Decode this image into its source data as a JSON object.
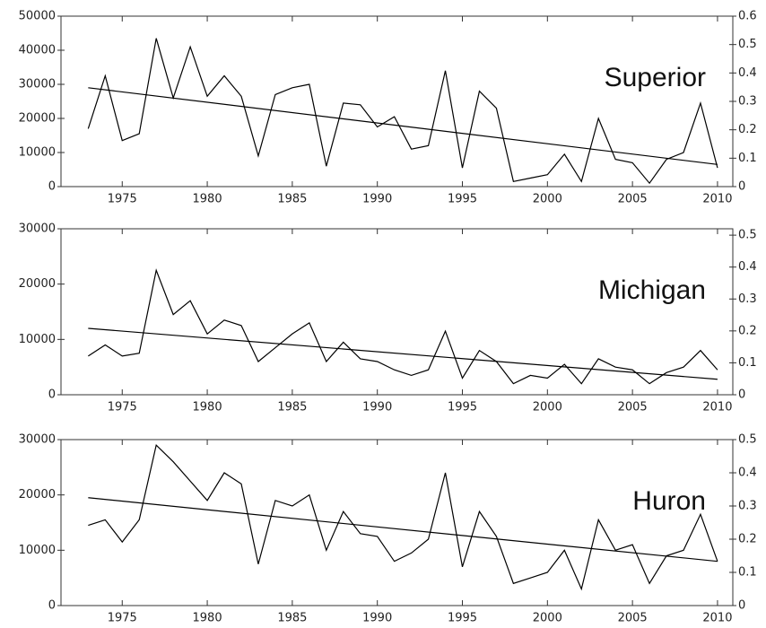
{
  "chart_data": [
    {
      "type": "line",
      "title": "Superior",
      "x": [
        1973,
        1974,
        1975,
        1976,
        1977,
        1978,
        1979,
        1980,
        1981,
        1982,
        1983,
        1984,
        1985,
        1986,
        1987,
        1988,
        1989,
        1990,
        1991,
        1992,
        1993,
        1994,
        1995,
        1996,
        1997,
        1998,
        1999,
        2000,
        2001,
        2002,
        2003,
        2004,
        2005,
        2006,
        2007,
        2008,
        2009,
        2010
      ],
      "series": [
        {
          "color": "#000000",
          "values": [
            17000,
            32500,
            13500,
            15500,
            43500,
            26000,
            41000,
            26500,
            32500,
            26500,
            9000,
            27000,
            29000,
            30000,
            6000,
            24500,
            24000,
            17500,
            20500,
            11000,
            12000,
            34000,
            5500,
            28000,
            23000,
            1500,
            2500,
            3500,
            9500,
            1500,
            20000,
            8000,
            7000,
            1000,
            8000,
            10000,
            24500,
            5500
          ]
        },
        {
          "color": "#000000",
          "x": [
            1973,
            2010
          ],
          "values": [
            29000,
            6500
          ]
        }
      ],
      "xlim": [
        1971.4,
        2010.9
      ],
      "xticks": [
        1975,
        1980,
        1985,
        1990,
        1995,
        2000,
        2005,
        2010
      ],
      "ylim": [
        0,
        50000
      ],
      "yticks": [
        0,
        10000,
        20000,
        30000,
        40000,
        50000
      ],
      "y2lim": [
        0,
        0.6
      ],
      "y2ticks": [
        0,
        0.1,
        0.2,
        0.3,
        0.4,
        0.5,
        0.6
      ]
    },
    {
      "type": "line",
      "title": "Michigan",
      "x": [
        1973,
        1974,
        1975,
        1976,
        1977,
        1978,
        1979,
        1980,
        1981,
        1982,
        1983,
        1984,
        1985,
        1986,
        1987,
        1988,
        1989,
        1990,
        1991,
        1992,
        1993,
        1994,
        1995,
        1996,
        1997,
        1998,
        1999,
        2000,
        2001,
        2002,
        2003,
        2004,
        2005,
        2006,
        2007,
        2008,
        2009,
        2010
      ],
      "series": [
        {
          "color": "#000000",
          "values": [
            7000,
            9000,
            7000,
            7500,
            22500,
            14500,
            17000,
            11000,
            13500,
            12500,
            6000,
            8500,
            11000,
            13000,
            6000,
            9500,
            6500,
            6000,
            4500,
            3500,
            4500,
            11500,
            3000,
            8000,
            6000,
            2000,
            3500,
            3000,
            5500,
            2000,
            6500,
            5000,
            4500,
            2000,
            4000,
            5000,
            8000,
            4500
          ]
        },
        {
          "color": "#000000",
          "x": [
            1973,
            2010
          ],
          "values": [
            12000,
            2800
          ]
        }
      ],
      "xlim": [
        1971.4,
        2010.9
      ],
      "xticks": [
        1975,
        1980,
        1985,
        1990,
        1995,
        2000,
        2005,
        2010
      ],
      "ylim": [
        0,
        30000
      ],
      "yticks": [
        0,
        10000,
        20000,
        30000
      ],
      "y2lim": [
        0,
        0.52
      ],
      "y2ticks": [
        0,
        0.1,
        0.2,
        0.3,
        0.4,
        0.5
      ]
    },
    {
      "type": "line",
      "title": "Huron",
      "x": [
        1973,
        1974,
        1975,
        1976,
        1977,
        1978,
        1979,
        1980,
        1981,
        1982,
        1983,
        1984,
        1985,
        1986,
        1987,
        1988,
        1989,
        1990,
        1991,
        1992,
        1993,
        1994,
        1995,
        1996,
        1997,
        1998,
        1999,
        2000,
        2001,
        2002,
        2003,
        2004,
        2005,
        2006,
        2007,
        2008,
        2009,
        2010
      ],
      "series": [
        {
          "color": "#000000",
          "values": [
            14500,
            15500,
            11500,
            15500,
            29000,
            26000,
            22500,
            19000,
            24000,
            22000,
            7500,
            19000,
            18000,
            20000,
            10000,
            17000,
            13000,
            12500,
            8000,
            9500,
            12000,
            24000,
            7000,
            17000,
            12500,
            4000,
            5000,
            6000,
            10000,
            3000,
            15500,
            10000,
            11000,
            4000,
            9000,
            10000,
            16500,
            8000
          ]
        },
        {
          "color": "#000000",
          "x": [
            1973,
            2010
          ],
          "values": [
            19500,
            8000
          ]
        }
      ],
      "xlim": [
        1971.4,
        2010.9
      ],
      "xticks": [
        1975,
        1980,
        1985,
        1990,
        1995,
        2000,
        2005,
        2010
      ],
      "ylim": [
        0,
        30000
      ],
      "yticks": [
        0,
        10000,
        20000,
        30000
      ],
      "y2lim": [
        0,
        0.5
      ],
      "y2ticks": [
        0,
        0.1,
        0.2,
        0.3,
        0.4,
        0.5
      ]
    }
  ]
}
